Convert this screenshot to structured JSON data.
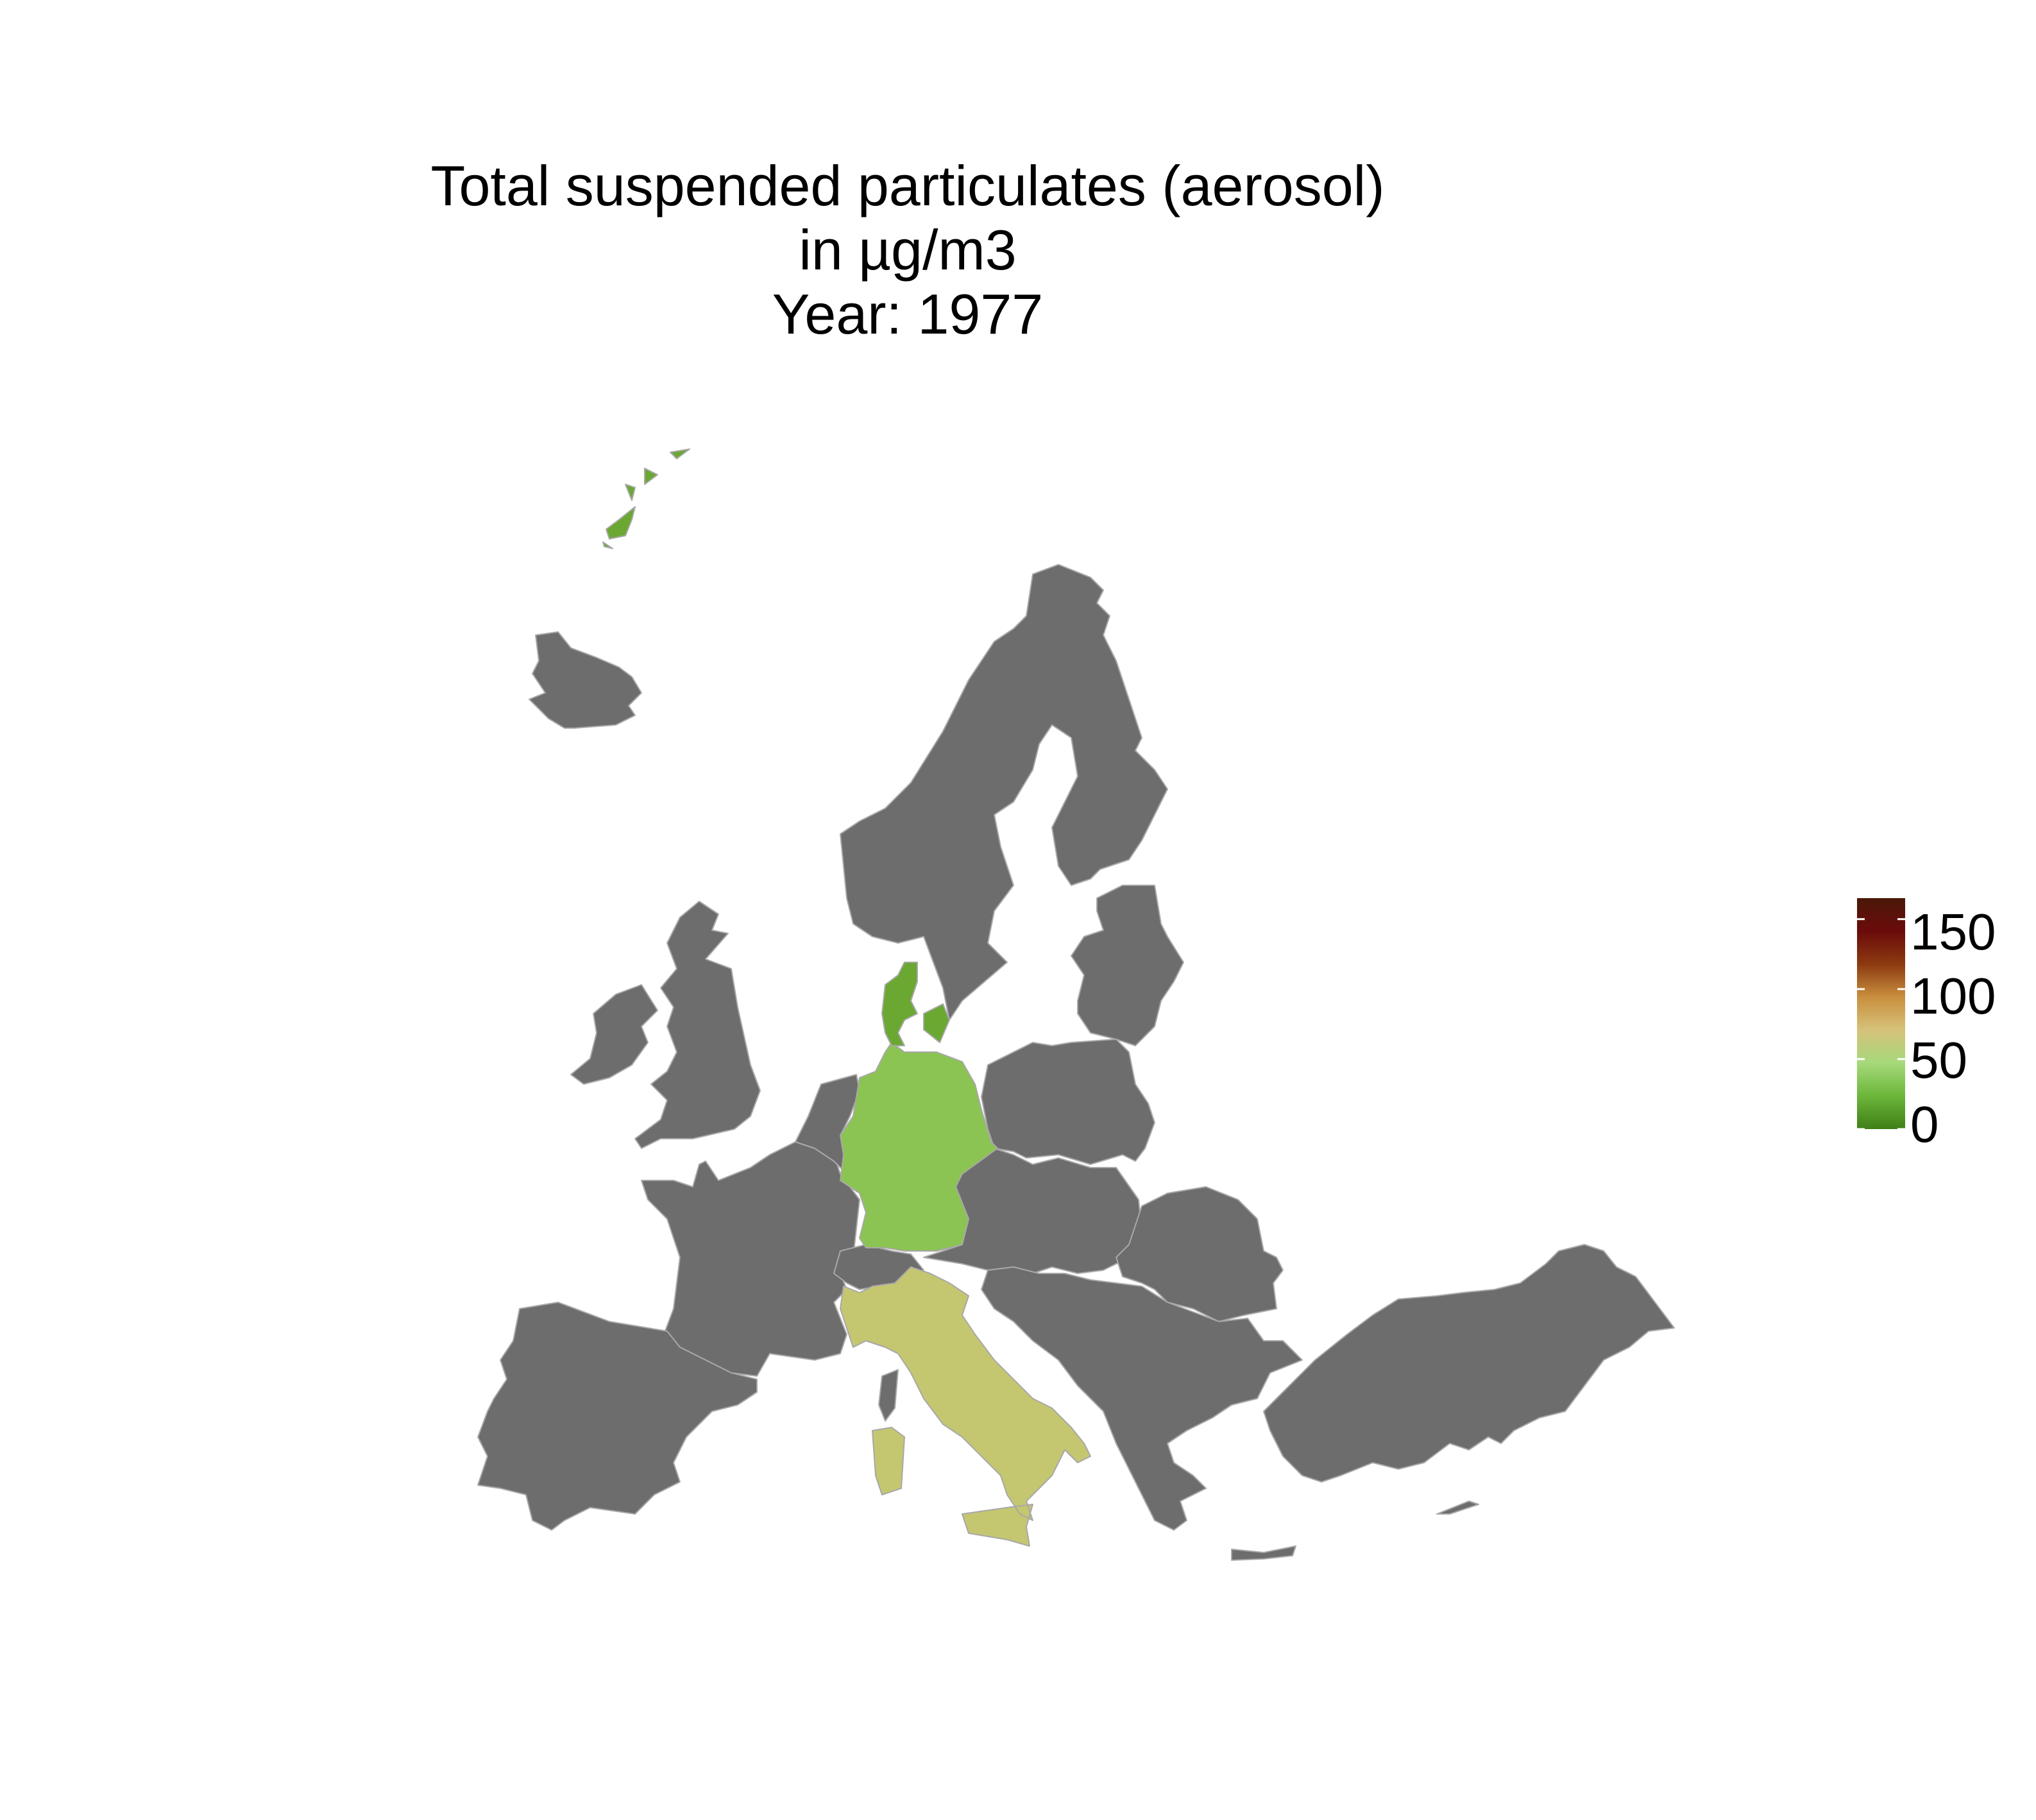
{
  "title": {
    "line1": "Total suspended particulates (aerosol)",
    "line2": "in µg/m3",
    "line3": "Year: 1977"
  },
  "colors": {
    "no_data": "#6d6d6d",
    "border": "#a8a8a8",
    "background": "#ffffff"
  },
  "regions": [
    {
      "name": "Germany",
      "status": "data",
      "color": "#8bc452"
    },
    {
      "name": "Denmark",
      "status": "data",
      "color": "#6aa832"
    },
    {
      "name": "Italy",
      "status": "data",
      "color": "#c5c770"
    },
    {
      "name": "Svalbard",
      "status": "data",
      "color": "#6aa832"
    }
  ],
  "legend": {
    "min": 0,
    "max": 165,
    "ticks": [
      "0",
      "50",
      "100",
      "150"
    ],
    "gradient": [
      "#3f7f17",
      "#6cb63a",
      "#a6d97a",
      "#d6c27a",
      "#c98f3e",
      "#8c3a10",
      "#6b0b0b",
      "#4a1808"
    ]
  }
}
